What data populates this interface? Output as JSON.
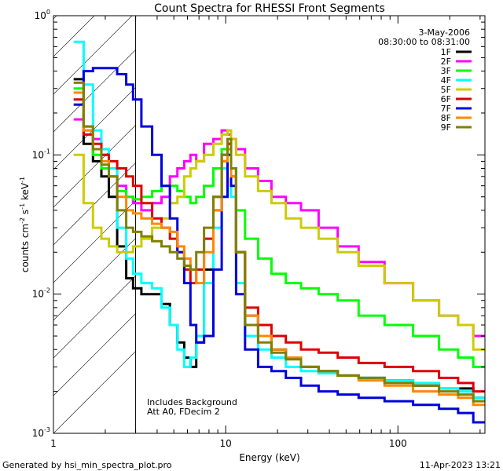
{
  "chart_data": {
    "type": "line",
    "title": "Count Spectra for RHESSI Front Segments",
    "xlabel": "Energy (keV)",
    "ylabel_parts": [
      "counts cm",
      "-2",
      " s",
      "-1",
      " keV",
      "-1"
    ],
    "xscale": "log",
    "yscale": "log",
    "xlim": [
      1,
      320
    ],
    "ylim": [
      0.001,
      1
    ],
    "x_ticks": [
      {
        "value": 1,
        "label": "1"
      },
      {
        "value": 10,
        "label": "10"
      },
      {
        "value": 100,
        "label": "100"
      }
    ],
    "y_ticks": [
      {
        "value": 0.001,
        "base": "10",
        "exp": "-3"
      },
      {
        "value": 0.01,
        "base": "10",
        "exp": "-2"
      },
      {
        "value": 0.1,
        "base": "10",
        "exp": "-1"
      },
      {
        "value": 1,
        "base": "10",
        "exp": "0"
      }
    ],
    "date": "3-May-2006",
    "time_range": "08:30:00 to 08:31:00",
    "hatched_region_keV": [
      1,
      3
    ],
    "annotations": [
      "Includes Background",
      "Att A0, FDecim 2"
    ],
    "series": [
      {
        "name": "1F",
        "color": "#000000",
        "x": [
          1.4,
          1.6,
          1.8,
          2.0,
          2.2,
          2.5,
          2.8,
          3.0,
          3.5,
          4.0,
          4.5,
          5.0,
          5.5,
          6.0,
          6.5,
          7.0,
          8.0,
          9.0,
          10.0,
          10.5,
          11.0,
          12.0,
          14,
          17,
          20,
          25,
          30,
          40,
          50,
          70,
          100,
          150,
          200,
          250,
          300
        ],
        "y": [
          0.35,
          0.12,
          0.09,
          0.07,
          0.05,
          0.022,
          0.013,
          0.011,
          0.01,
          0.01,
          0.0085,
          0.006,
          0.0045,
          0.0035,
          0.003,
          0.0045,
          0.015,
          0.04,
          0.09,
          0.12,
          0.08,
          0.02,
          0.007,
          0.005,
          0.004,
          0.0035,
          0.003,
          0.0028,
          0.0026,
          0.0025,
          0.0024,
          0.0022,
          0.0021,
          0.0021,
          0.0018
        ]
      },
      {
        "name": "2F",
        "color": "#ff00ff",
        "x": [
          1.4,
          1.6,
          1.8,
          2.0,
          2.2,
          2.5,
          2.8,
          3.0,
          3.5,
          4.0,
          4.5,
          5.0,
          5.5,
          6.0,
          6.5,
          7.0,
          8.0,
          9.0,
          10.0,
          10.5,
          11.0,
          12.0,
          14,
          17,
          20,
          25,
          30,
          40,
          50,
          70,
          100,
          150,
          200,
          250,
          300
        ],
        "y": [
          0.18,
          0.16,
          0.13,
          0.1,
          0.08,
          0.06,
          0.05,
          0.045,
          0.04,
          0.045,
          0.05,
          0.07,
          0.08,
          0.09,
          0.1,
          0.09,
          0.12,
          0.13,
          0.15,
          0.14,
          0.13,
          0.11,
          0.08,
          0.065,
          0.05,
          0.045,
          0.04,
          0.03,
          0.022,
          0.017,
          0.012,
          0.009,
          0.007,
          0.006,
          0.005
        ]
      },
      {
        "name": "3F",
        "color": "#00ff00",
        "x": [
          1.4,
          1.6,
          1.8,
          2.0,
          2.2,
          2.5,
          2.8,
          3.0,
          3.5,
          4.0,
          4.5,
          5.0,
          5.5,
          6.0,
          6.5,
          7.0,
          8.0,
          9.0,
          10.0,
          10.5,
          11.0,
          12.0,
          14,
          17,
          20,
          25,
          30,
          40,
          50,
          70,
          100,
          150,
          200,
          250,
          300
        ],
        "y": [
          0.3,
          0.15,
          0.1,
          0.08,
          0.07,
          0.055,
          0.05,
          0.048,
          0.05,
          0.055,
          0.06,
          0.06,
          0.055,
          0.05,
          0.045,
          0.05,
          0.06,
          0.08,
          0.11,
          0.12,
          0.08,
          0.04,
          0.025,
          0.018,
          0.014,
          0.012,
          0.011,
          0.01,
          0.009,
          0.007,
          0.006,
          0.005,
          0.004,
          0.0035,
          0.003
        ]
      },
      {
        "name": "4F",
        "color": "#00ffff",
        "x": [
          1.4,
          1.6,
          1.8,
          2.0,
          2.2,
          2.5,
          2.8,
          3.0,
          3.5,
          4.0,
          4.5,
          5.0,
          5.5,
          6.0,
          6.5,
          7.0,
          8.0,
          9.0,
          10.0,
          10.5,
          11.0,
          12.0,
          14,
          17,
          20,
          25,
          30,
          40,
          50,
          70,
          100,
          150,
          200,
          250,
          300
        ],
        "y": [
          0.65,
          0.32,
          0.15,
          0.11,
          0.08,
          0.03,
          0.018,
          0.014,
          0.012,
          0.011,
          0.008,
          0.006,
          0.004,
          0.003,
          0.0035,
          0.005,
          0.012,
          0.03,
          0.08,
          0.1,
          0.05,
          0.012,
          0.005,
          0.004,
          0.0035,
          0.003,
          0.0028,
          0.0027,
          0.0026,
          0.0025,
          0.0024,
          0.0023,
          0.0021,
          0.002,
          0.0018
        ]
      },
      {
        "name": "5F",
        "color": "#cccc00",
        "x": [
          1.4,
          1.6,
          1.8,
          2.0,
          2.2,
          2.5,
          2.8,
          3.0,
          3.5,
          4.0,
          4.5,
          5.0,
          5.5,
          6.0,
          6.5,
          7.0,
          8.0,
          9.0,
          10.0,
          10.5,
          11.0,
          12.0,
          14,
          17,
          20,
          25,
          30,
          40,
          50,
          70,
          100,
          150,
          200,
          250,
          300
        ],
        "y": [
          0.1,
          0.045,
          0.03,
          0.025,
          0.022,
          0.02,
          0.02,
          0.022,
          0.025,
          0.03,
          0.035,
          0.045,
          0.05,
          0.07,
          0.08,
          0.09,
          0.1,
          0.12,
          0.14,
          0.15,
          0.13,
          0.1,
          0.07,
          0.055,
          0.045,
          0.035,
          0.03,
          0.025,
          0.02,
          0.016,
          0.012,
          0.009,
          0.007,
          0.006,
          0.004
        ]
      },
      {
        "name": "6F",
        "color": "#dd0000",
        "x": [
          1.4,
          1.6,
          1.8,
          2.0,
          2.2,
          2.5,
          2.8,
          3.0,
          3.5,
          4.0,
          4.5,
          5.0,
          5.5,
          6.0,
          6.5,
          7.0,
          8.0,
          9.0,
          10.0,
          10.5,
          11.0,
          12.0,
          14,
          17,
          20,
          25,
          30,
          40,
          50,
          70,
          100,
          150,
          200,
          250,
          300
        ],
        "y": [
          0.25,
          0.14,
          0.12,
          0.1,
          0.09,
          0.08,
          0.07,
          0.06,
          0.045,
          0.035,
          0.03,
          0.025,
          0.02,
          0.015,
          0.012,
          0.015,
          0.025,
          0.05,
          0.1,
          0.12,
          0.07,
          0.02,
          0.008,
          0.006,
          0.005,
          0.0045,
          0.004,
          0.0038,
          0.0035,
          0.0032,
          0.003,
          0.0028,
          0.0025,
          0.0023,
          0.002
        ]
      },
      {
        "name": "7F",
        "color": "#0000dd",
        "x": [
          1.4,
          1.6,
          1.8,
          2.0,
          2.2,
          2.5,
          2.8,
          3.0,
          3.5,
          4.0,
          4.5,
          5.0,
          5.5,
          6.0,
          6.5,
          7.0,
          8.0,
          9.0,
          10.0,
          10.5,
          11.0,
          12.0,
          14,
          17,
          20,
          25,
          30,
          40,
          50,
          70,
          100,
          150,
          200,
          250,
          300
        ],
        "y": [
          0.23,
          0.4,
          0.42,
          0.42,
          0.42,
          0.38,
          0.32,
          0.25,
          0.16,
          0.1,
          0.06,
          0.035,
          0.02,
          0.012,
          0.006,
          0.0045,
          0.005,
          0.015,
          0.05,
          0.1,
          0.06,
          0.01,
          0.004,
          0.003,
          0.0028,
          0.0025,
          0.0022,
          0.002,
          0.0019,
          0.0018,
          0.0017,
          0.0016,
          0.0015,
          0.0014,
          0.0012
        ]
      },
      {
        "name": "8F",
        "color": "#ff8800",
        "x": [
          1.4,
          1.6,
          1.8,
          2.0,
          2.2,
          2.5,
          2.8,
          3.0,
          3.5,
          4.0,
          4.5,
          5.0,
          5.5,
          6.0,
          6.5,
          7.0,
          8.0,
          9.0,
          10.0,
          10.5,
          11.0,
          12.0,
          14,
          17,
          20,
          25,
          30,
          40,
          50,
          70,
          100,
          150,
          200,
          250,
          300
        ],
        "y": [
          0.28,
          0.15,
          0.11,
          0.09,
          0.07,
          0.05,
          0.04,
          0.038,
          0.035,
          0.032,
          0.03,
          0.028,
          0.022,
          0.018,
          0.015,
          0.012,
          0.02,
          0.04,
          0.09,
          0.11,
          0.07,
          0.02,
          0.007,
          0.005,
          0.004,
          0.0035,
          0.003,
          0.0028,
          0.0026,
          0.0024,
          0.0022,
          0.002,
          0.0019,
          0.0018,
          0.0016
        ]
      },
      {
        "name": "9F",
        "color": "#808000",
        "x": [
          1.4,
          1.6,
          1.8,
          2.0,
          2.2,
          2.5,
          2.8,
          3.0,
          3.5,
          4.0,
          4.5,
          5.0,
          5.5,
          6.0,
          6.5,
          7.0,
          8.0,
          9.0,
          10.0,
          10.5,
          11.0,
          12.0,
          14,
          17,
          20,
          25,
          30,
          40,
          50,
          70,
          100,
          150,
          200,
          250,
          300
        ],
        "y": [
          0.33,
          0.16,
          0.11,
          0.085,
          0.07,
          0.04,
          0.03,
          0.028,
          0.026,
          0.024,
          0.022,
          0.02,
          0.018,
          0.016,
          0.015,
          0.02,
          0.03,
          0.05,
          0.1,
          0.13,
          0.08,
          0.02,
          0.006,
          0.0045,
          0.0038,
          0.0034,
          0.003,
          0.0028,
          0.0026,
          0.0025,
          0.0023,
          0.0022,
          0.002,
          0.0019,
          0.0017
        ]
      }
    ]
  },
  "footer": {
    "left": "Generated by hsi_min_spectra_plot.pro",
    "right": "11-Apr-2023 13:21"
  }
}
